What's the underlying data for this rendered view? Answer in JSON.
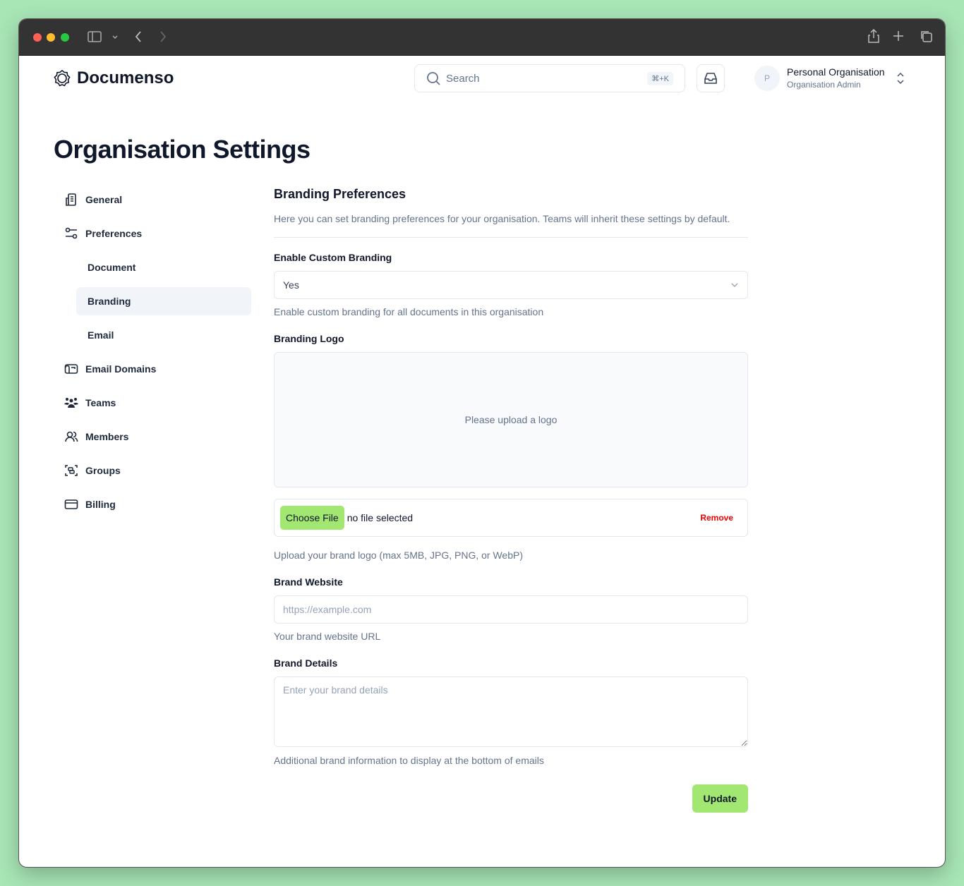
{
  "browser": {
    "icons": [
      "sidebar-icon",
      "chevron-down-icon",
      "back-icon",
      "forward-icon",
      "share-icon",
      "new-tab-icon",
      "tabs-icon"
    ]
  },
  "header": {
    "brand": "Documenso",
    "search_placeholder": "Search",
    "shortcut": "⌘+K",
    "avatar_initial": "P",
    "org_name": "Personal Organisation",
    "org_role": "Organisation Admin"
  },
  "page_title": "Organisation Settings",
  "sidebar": {
    "items": [
      {
        "label": "General",
        "icon": "building-icon"
      },
      {
        "label": "Preferences",
        "icon": "sliders-icon"
      },
      {
        "label": "Document"
      },
      {
        "label": "Branding",
        "active": true
      },
      {
        "label": "Email"
      },
      {
        "label": "Email Domains",
        "icon": "mailbox-icon"
      },
      {
        "label": "Teams",
        "icon": "users-filled-icon"
      },
      {
        "label": "Members",
        "icon": "users-icon"
      },
      {
        "label": "Groups",
        "icon": "group-icon"
      },
      {
        "label": "Billing",
        "icon": "credit-card-icon"
      }
    ]
  },
  "main": {
    "title": "Branding Preferences",
    "description": "Here you can set branding preferences for your organisation. Teams will inherit these settings by default.",
    "enable_label": "Enable Custom Branding",
    "enable_value": "Yes",
    "enable_help": "Enable custom branding for all documents in this organisation",
    "logo_label": "Branding Logo",
    "logo_placeholder": "Please upload a logo",
    "choose_file": "Choose File",
    "no_file": "no file selected",
    "remove": "Remove",
    "logo_help": "Upload your brand logo (max 5MB, JPG, PNG, or WebP)",
    "website_label": "Brand Website",
    "website_placeholder": "https://example.com",
    "website_help": "Your brand website URL",
    "details_label": "Brand Details",
    "details_placeholder": "Enter your brand details",
    "details_help": "Additional brand information to display at the bottom of emails",
    "update": "Update"
  },
  "colors": {
    "accent": "#a2e771",
    "danger": "#ef0000",
    "background": "#a8e6b6"
  }
}
